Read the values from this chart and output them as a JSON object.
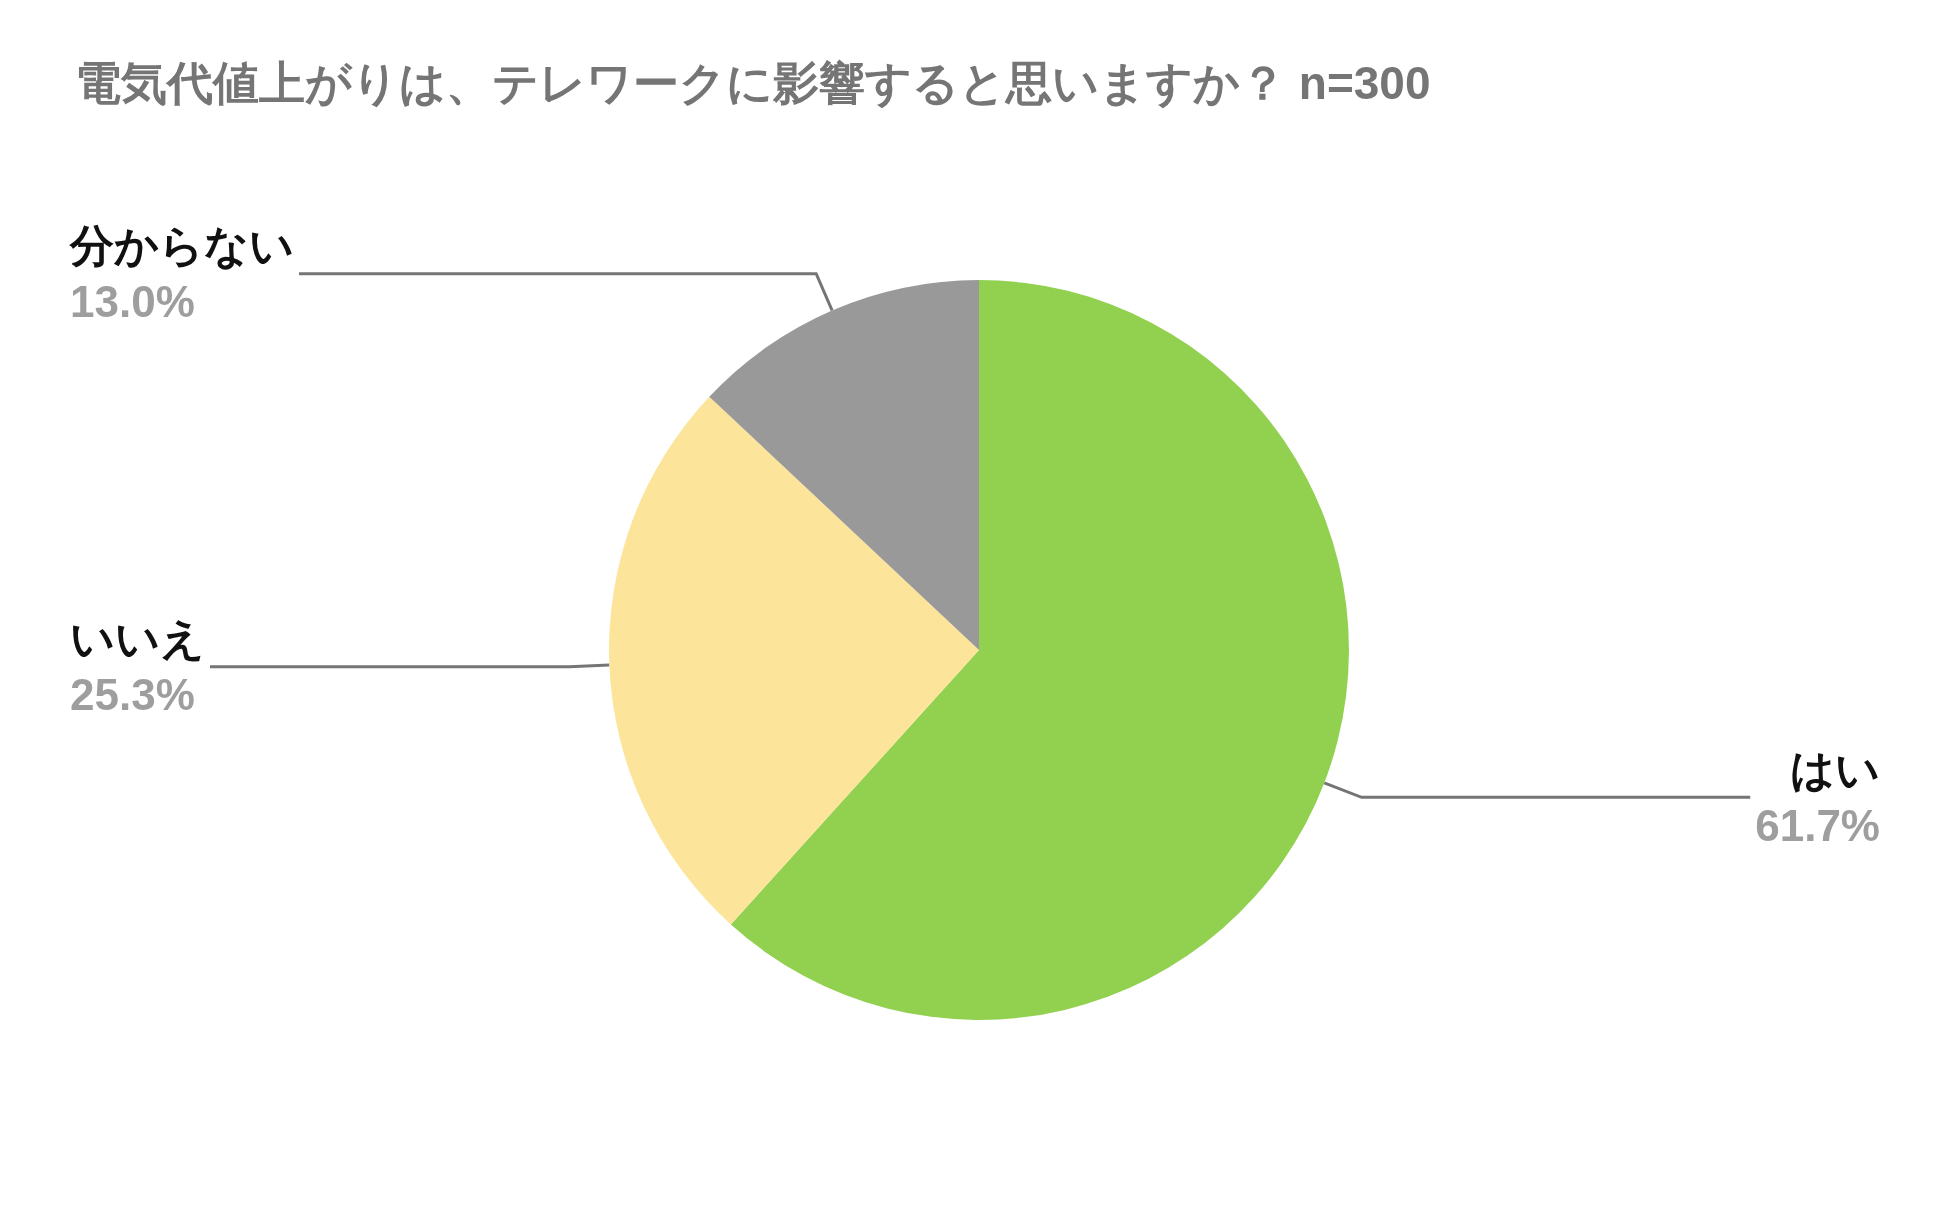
{
  "chart_data": {
    "type": "pie",
    "title": "電気代値上がりは、テレワークに影響すると思いますか？ n=300",
    "categories": [
      "はい",
      "いいえ",
      "分からない"
    ],
    "values": [
      61.7,
      25.3,
      13.0
    ],
    "value_labels": [
      "61.7%",
      "25.3%",
      "13.0%"
    ],
    "colors": [
      "#92d050",
      "#fce49a",
      "#999999"
    ],
    "legend": false
  }
}
